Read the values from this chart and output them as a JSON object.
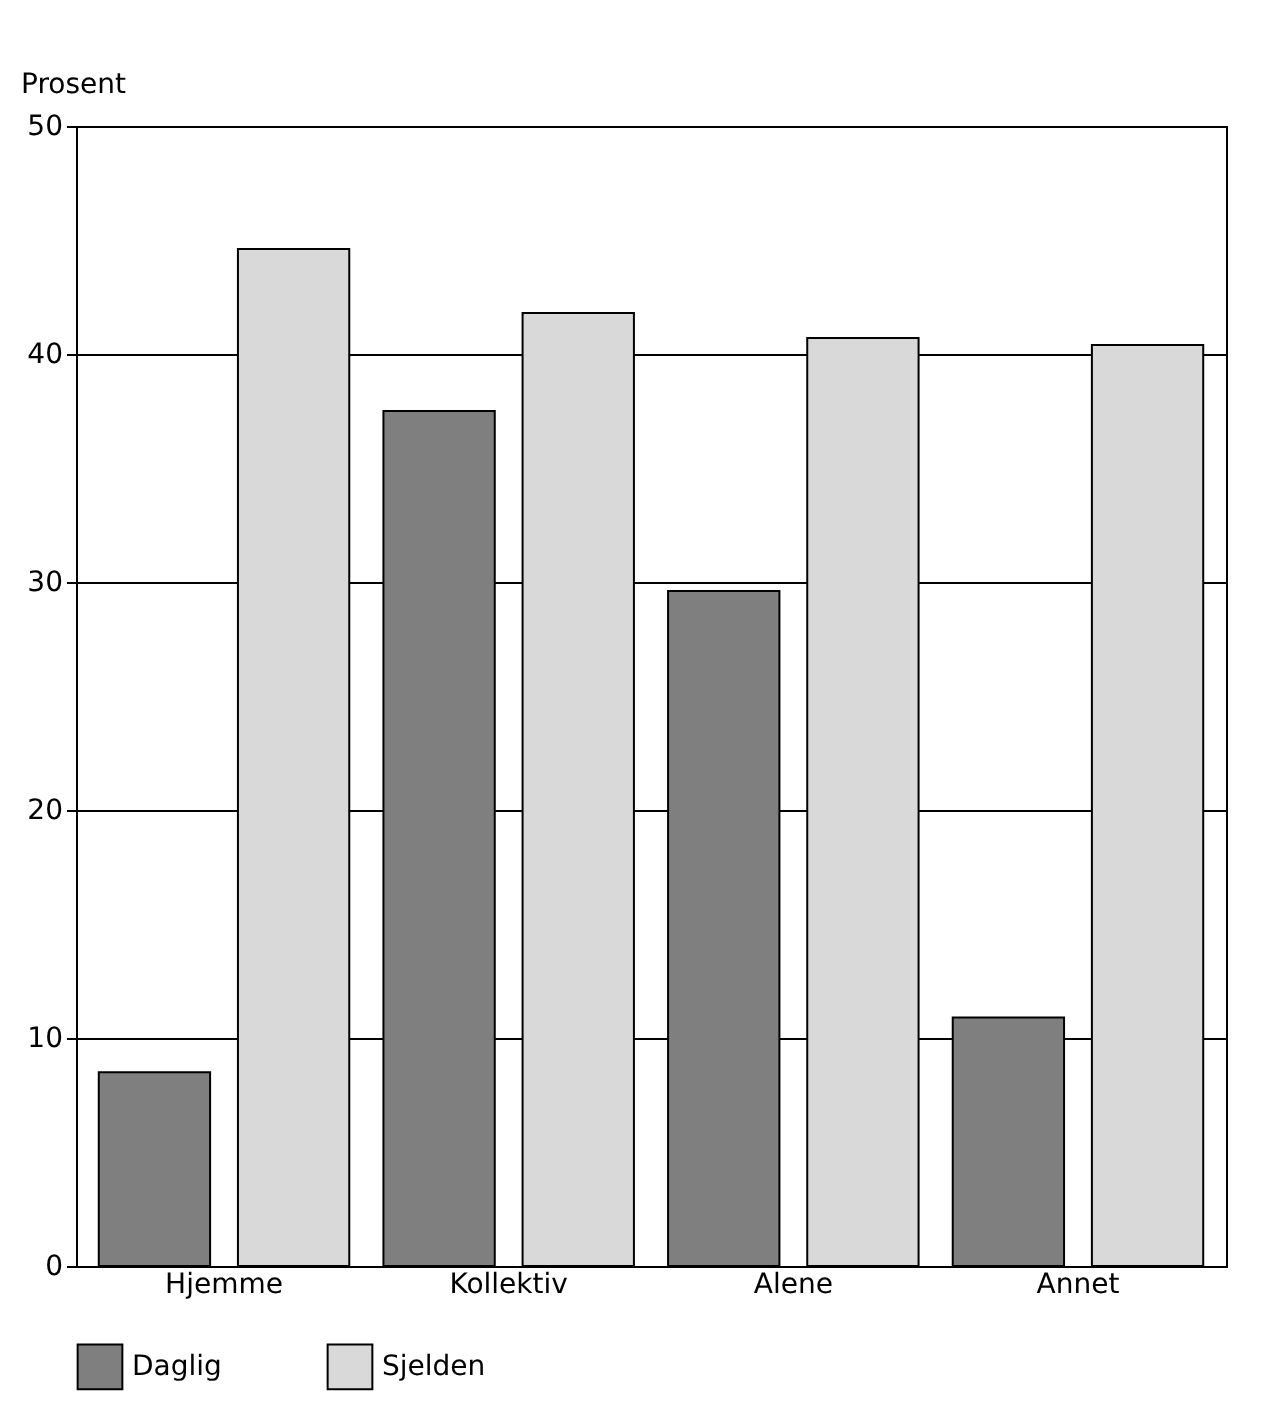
{
  "chart_data": {
    "type": "bar",
    "ylabel": "Prosent",
    "categories": [
      "Hjemme",
      "Kollektiv",
      "Alene",
      "Annet"
    ],
    "series": [
      {
        "name": "Daglig",
        "color": "#7f7f7f",
        "values": [
          8.5,
          37.5,
          29.6,
          10.9
        ]
      },
      {
        "name": "Sjelden",
        "color": "#d9d9d9",
        "values": [
          44.6,
          41.8,
          40.7,
          40.4
        ]
      }
    ],
    "ylim": [
      0,
      50
    ],
    "yticks": [
      0,
      10,
      20,
      30,
      40,
      50
    ],
    "grid": "y",
    "legend": "bottom"
  }
}
